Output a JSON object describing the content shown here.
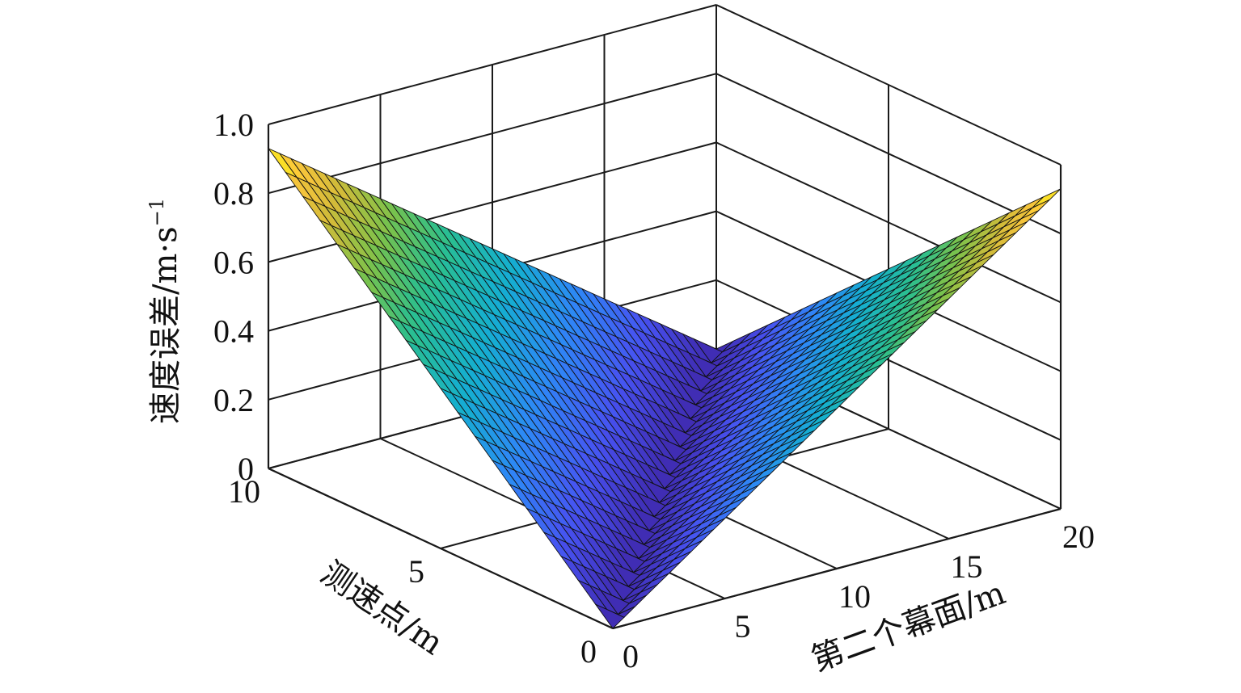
{
  "chart_data": {
    "type": "surface3d",
    "title": "",
    "zlabel": "速度误差/m·s",
    "zlabel_superscript": "−1",
    "xlabel": "第二个幕面/m",
    "ylabel": "测速点/m",
    "xlim": [
      0,
      20
    ],
    "ylim": [
      0,
      10
    ],
    "zlim": [
      0,
      1.0
    ],
    "x_ticks": [
      "0",
      "5",
      "10",
      "15",
      "20"
    ],
    "y_ticks": [
      "0",
      "5",
      "10"
    ],
    "z_ticks": [
      "0",
      "0.2",
      "0.4",
      "0.6",
      "0.8",
      "1.0"
    ],
    "grid": true,
    "colormap": "parula",
    "surface": {
      "description_points": [
        {
          "x": 0,
          "y": 0,
          "z": 0
        },
        {
          "x": 0,
          "y": 10,
          "z": 0.93
        },
        {
          "x": 20,
          "y": 0,
          "z": 0.93
        },
        {
          "x": 20,
          "y": 10,
          "z": 0
        }
      ]
    }
  }
}
